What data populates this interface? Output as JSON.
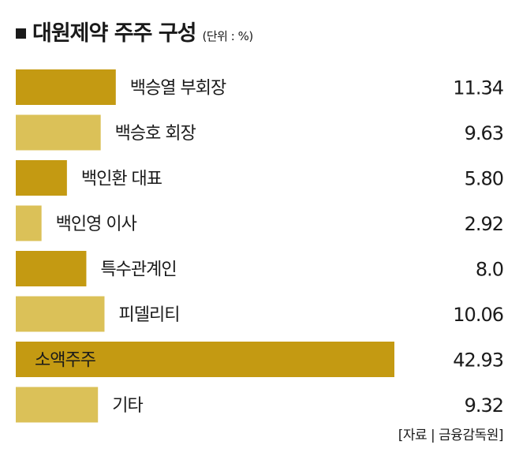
{
  "chart_data": {
    "type": "bar",
    "orientation": "horizontal",
    "title": "대원제약 주주 구성",
    "unit": "(단위 : %)",
    "categories": [
      "백승열 부회장",
      "백승호 회장",
      "백인환 대표",
      "백인영 이사",
      "특수관계인",
      "피델리티",
      "소액주주",
      "기타"
    ],
    "values": [
      11.34,
      9.63,
      5.8,
      2.92,
      8.0,
      10.06,
      42.93,
      9.32
    ],
    "value_labels": [
      "11.34",
      "9.63",
      "5.80",
      "2.92",
      "8.0",
      "10.06",
      "42.93",
      "9.32"
    ],
    "bar_colors": [
      "#c49a12",
      "#dbc158",
      "#c49a12",
      "#dbc158",
      "#c49a12",
      "#dbc158",
      "#c49a12",
      "#dbc158"
    ],
    "source": "[자료 | 금융감독원]",
    "xlim": [
      0,
      42.93
    ],
    "grid": false,
    "legend": "none"
  }
}
